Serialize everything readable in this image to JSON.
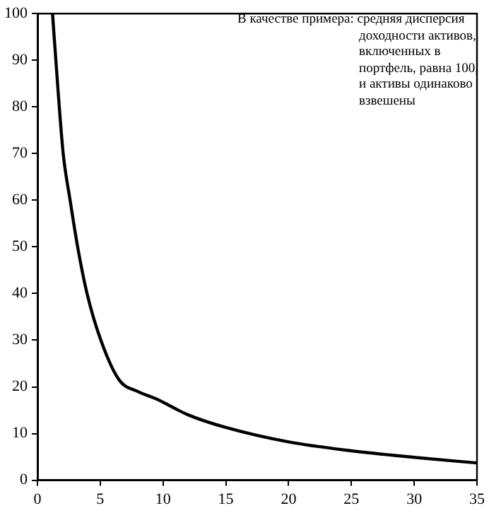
{
  "chart_data": {
    "type": "line",
    "annotations": [
      "В качестве примера: средняя дисперсия доходности активов, включенных в портфель, равна 100,  и активы одинаково взвешены"
    ],
    "series": [
      {
        "color": "#000000",
        "x": [
          1.2,
          1.6,
          2.05,
          2.6,
          3.2,
          3.95,
          5.05,
          6.5,
          8,
          9.4,
          12,
          15,
          20,
          25,
          30,
          35
        ],
        "values": [
          100,
          85,
          70,
          60,
          50,
          40,
          30,
          21.5,
          19,
          17.5,
          14,
          11.3,
          8.2,
          6.3,
          4.9,
          3.7
        ]
      }
    ],
    "xlim": [
      0,
      35
    ],
    "xticks": [
      0,
      5,
      10,
      15,
      20,
      25,
      30,
      35
    ],
    "ylim": [
      0,
      100
    ],
    "yticks": [
      0,
      10,
      20,
      30,
      40,
      50,
      60,
      70,
      80,
      90,
      100
    ],
    "grid": false,
    "marker": "none",
    "line_style": "solid"
  }
}
